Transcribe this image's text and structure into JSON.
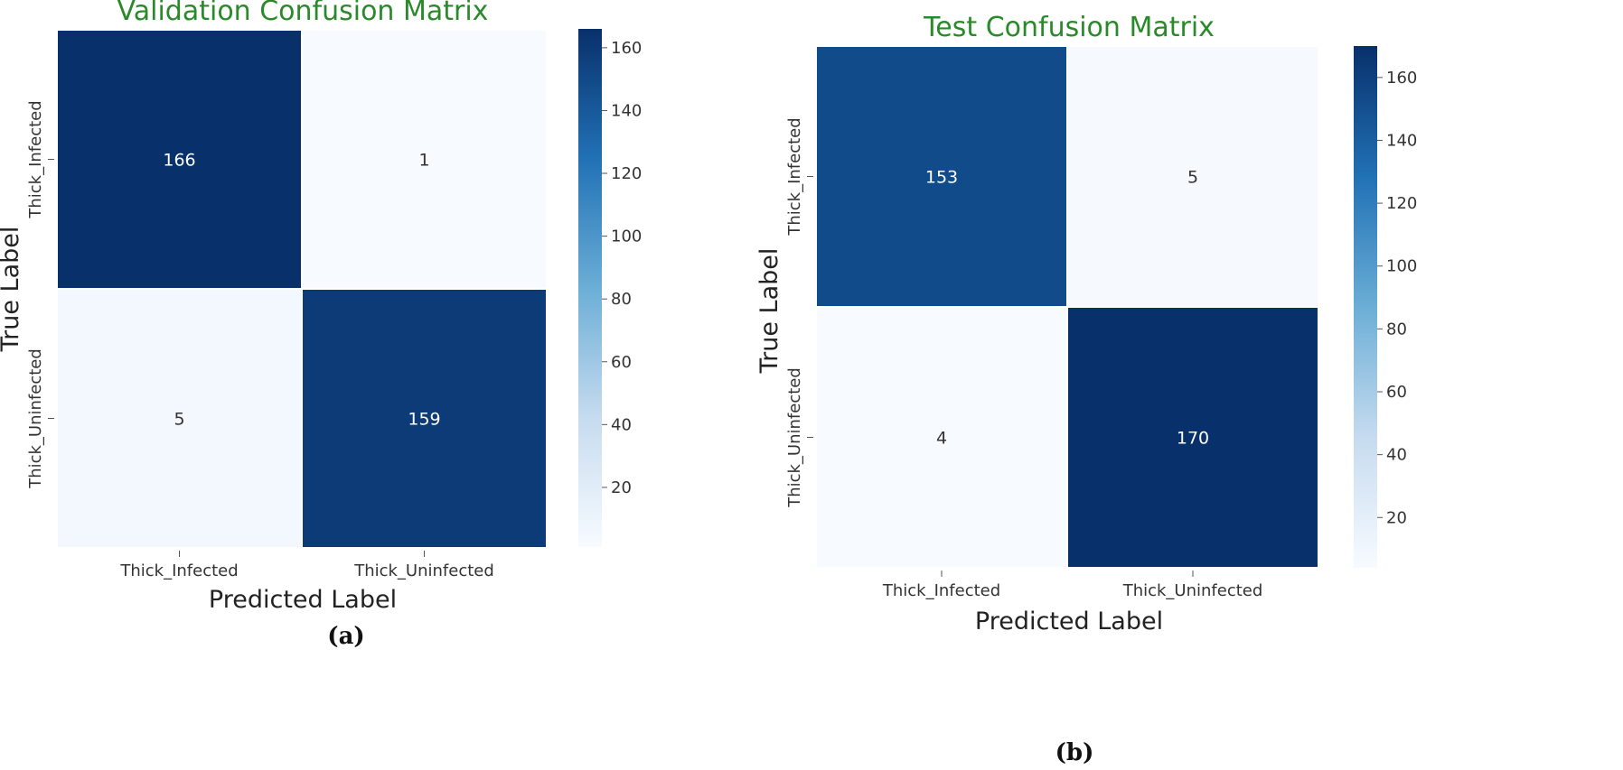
{
  "colors": {
    "title": "#2a8a2a",
    "cmap_low": "#f7fbff",
    "cmap_mid1": "#c6dbef",
    "cmap_mid2": "#6baed6",
    "cmap_mid3": "#2171b5",
    "cmap_high": "#08306b",
    "cell_border": "#ffffff"
  },
  "chart_data": [
    {
      "type": "heatmap",
      "title": "Validation Confusion Matrix",
      "xlabel": "Predicted Label",
      "ylabel": "True Label",
      "x_categories": [
        "Thick_Infected",
        "Thick_Uninfected"
      ],
      "y_categories": [
        "Thick_Infected",
        "Thick_Uninfected"
      ],
      "values": [
        [
          166,
          1
        ],
        [
          5,
          159
        ]
      ],
      "colorbar": {
        "min": 1,
        "max": 166,
        "ticks": [
          20,
          40,
          60,
          80,
          100,
          120,
          140,
          160
        ]
      },
      "caption": "(a)"
    },
    {
      "type": "heatmap",
      "title": "Test Confusion Matrix",
      "xlabel": "Predicted Label",
      "ylabel": "True Label",
      "x_categories": [
        "Thick_Infected",
        "Thick_Uninfected"
      ],
      "y_categories": [
        "Thick_Infected",
        "Thick_Uninfected"
      ],
      "values": [
        [
          153,
          5
        ],
        [
          4,
          170
        ]
      ],
      "colorbar": {
        "min": 4,
        "max": 170,
        "ticks": [
          20,
          40,
          60,
          80,
          100,
          120,
          140,
          160
        ]
      },
      "caption": "(b)"
    }
  ]
}
